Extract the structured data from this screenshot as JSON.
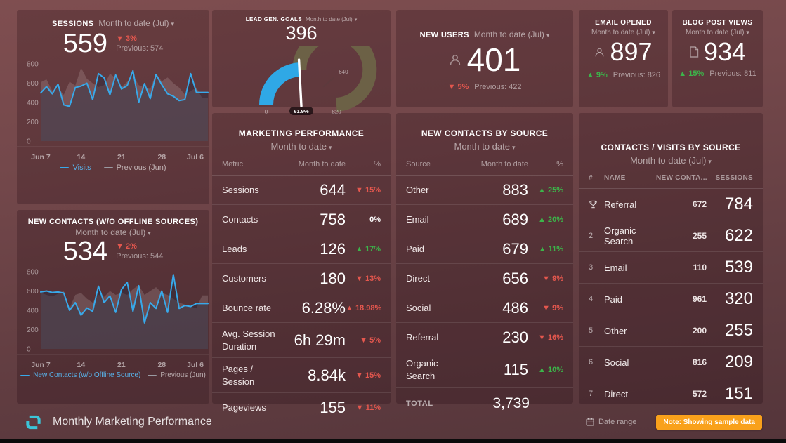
{
  "panels": {
    "sessions": {
      "title": "SESSIONS",
      "range": "Month to date (Jul)",
      "value": "559",
      "delta": "3%",
      "delta_dir": "down",
      "previous": "Previous: 574"
    },
    "lead_gen_goals": {
      "title": "LEAD GEN. GOALS",
      "range": "Month to date (Jul)",
      "value": "396",
      "gauge_min": "0",
      "gauge_goal": "640",
      "gauge_max": "820",
      "percent_label": "61.9%"
    },
    "new_users": {
      "title": "NEW USERS",
      "range": "Month to date (Jul)",
      "value": "401",
      "delta": "5%",
      "delta_dir": "down",
      "previous": "Previous: 422"
    },
    "email_opened": {
      "title": "EMAIL OPENED",
      "range": "Month to date (Jul)",
      "value": "897",
      "delta": "9%",
      "delta_dir": "up",
      "previous": "Previous: 826"
    },
    "blog_post_views": {
      "title": "BLOG POST VIEWS",
      "range": "Month to date (Jul)",
      "value": "934",
      "delta": "15%",
      "delta_dir": "up",
      "previous": "Previous: 811"
    },
    "new_contacts": {
      "title": "NEW CONTACTS (W/O OFFLINE SOURCES)",
      "range": "Month to date (Jul)",
      "value": "534",
      "delta": "2%",
      "delta_dir": "down",
      "previous": "Previous: 544"
    },
    "marketing_performance": {
      "title": "MARKETING PERFORMANCE",
      "range": "Month to date",
      "columns": [
        "Metric",
        "Month to date",
        "%"
      ],
      "rows": [
        {
          "label": "Sessions",
          "value": "644",
          "delta": "15%",
          "arrow": "down",
          "tone": "bad"
        },
        {
          "label": "Contacts",
          "value": "758",
          "delta": "0%",
          "arrow": "none",
          "tone": "neutral"
        },
        {
          "label": "Leads",
          "value": "126",
          "delta": "17%",
          "arrow": "up",
          "tone": "good"
        },
        {
          "label": "Customers",
          "value": "180",
          "delta": "13%",
          "arrow": "down",
          "tone": "bad"
        },
        {
          "label": "Bounce rate",
          "value": "6.28%",
          "delta": "18.98%",
          "arrow": "up",
          "tone": "bad"
        },
        {
          "label": "Avg. Session Duration",
          "value": "6h 29m",
          "delta": "5%",
          "arrow": "down",
          "tone": "bad"
        },
        {
          "label": "Pages / Session",
          "value": "8.84k",
          "delta": "15%",
          "arrow": "down",
          "tone": "bad"
        },
        {
          "label": "Pageviews",
          "value": "155",
          "delta": "11%",
          "arrow": "down",
          "tone": "bad"
        }
      ]
    },
    "new_contacts_by_source": {
      "title": "NEW CONTACTS BY SOURCE",
      "range": "Month to date",
      "columns": [
        "Source",
        "Month to date",
        "%"
      ],
      "rows": [
        {
          "label": "Other",
          "value": "883",
          "delta": "25%",
          "arrow": "up",
          "tone": "good"
        },
        {
          "label": "Email",
          "value": "689",
          "delta": "20%",
          "arrow": "up",
          "tone": "good"
        },
        {
          "label": "Paid",
          "value": "679",
          "delta": "11%",
          "arrow": "up",
          "tone": "good"
        },
        {
          "label": "Direct",
          "value": "656",
          "delta": "9%",
          "arrow": "down",
          "tone": "bad"
        },
        {
          "label": "Social",
          "value": "486",
          "delta": "9%",
          "arrow": "down",
          "tone": "bad"
        },
        {
          "label": "Referral",
          "value": "230",
          "delta": "16%",
          "arrow": "down",
          "tone": "bad"
        },
        {
          "label": "Organic Search",
          "value": "115",
          "delta": "10%",
          "arrow": "up",
          "tone": "good"
        }
      ],
      "total_label": "TOTAL",
      "total_value": "3,739"
    },
    "contacts_visits_by_source": {
      "title": "CONTACTS / VISITS BY SOURCE",
      "range": "Month to date (Jul)",
      "columns": [
        "#",
        "NAME",
        "NEW CONTA...",
        "SESSIONS"
      ],
      "rows": [
        {
          "rank": "1",
          "rank_icon": "trophy",
          "name": "Referral",
          "new_contacts": "672",
          "sessions": "784"
        },
        {
          "rank": "2",
          "name": "Organic Search",
          "new_contacts": "255",
          "sessions": "622"
        },
        {
          "rank": "3",
          "name": "Email",
          "new_contacts": "110",
          "sessions": "539"
        },
        {
          "rank": "4",
          "name": "Paid",
          "new_contacts": "961",
          "sessions": "320"
        },
        {
          "rank": "5",
          "name": "Other",
          "new_contacts": "200",
          "sessions": "255"
        },
        {
          "rank": "6",
          "name": "Social",
          "new_contacts": "816",
          "sessions": "209"
        },
        {
          "rank": "7",
          "name": "Direct",
          "new_contacts": "572",
          "sessions": "151"
        }
      ]
    }
  },
  "footer": {
    "title": "Monthly Marketing Performance",
    "date_range": "Date range",
    "note": "Note: Showing sample data"
  },
  "theme": {
    "accent_blue": "#38a9ea",
    "red": "#e4574e",
    "green": "#3cb54a",
    "gauge_blue": "#2fa8e6",
    "gauge_olive": "#6c6146",
    "note_orange": "#f9a11b",
    "logo_teal": "#3bc5d8"
  },
  "chart_data": [
    {
      "id": "sessions",
      "type": "line",
      "title": "SESSIONS",
      "ylim": [
        0,
        800
      ],
      "y_ticks": [
        0,
        200,
        400,
        600,
        800
      ],
      "x_ticks": [
        "Jun 7",
        "14",
        "21",
        "28",
        "Jul 6"
      ],
      "x_tick_indices": [
        0,
        7,
        14,
        21,
        29
      ],
      "series": [
        {
          "name": "Visits",
          "color": "#38a9ea",
          "label_color": "#58b3eb",
          "values": [
            500,
            565,
            490,
            590,
            375,
            360,
            555,
            570,
            600,
            430,
            700,
            655,
            480,
            685,
            540,
            575,
            730,
            400,
            595,
            440,
            690,
            585,
            490,
            465,
            420,
            430,
            700,
            505,
            505,
            505
          ]
        },
        {
          "name": "Previous (Jun)",
          "color": "#9a9aa2",
          "label_color": "rgba(255,255,255,0.6)",
          "values": [
            610,
            640,
            520,
            555,
            480,
            615,
            575,
            760,
            645,
            600,
            560,
            580,
            700,
            650,
            560,
            615,
            680,
            580,
            555,
            540,
            700,
            620,
            660,
            600,
            555,
            480,
            520,
            555,
            445,
            445
          ]
        }
      ]
    },
    {
      "id": "new_contacts",
      "type": "line",
      "title": "NEW CONTACTS (W/O OFFLINE SOURCES)",
      "ylim": [
        0,
        800
      ],
      "y_ticks": [
        0,
        200,
        400,
        600,
        800
      ],
      "x_ticks": [
        "Jun 7",
        "14",
        "21",
        "28",
        "Jul 6"
      ],
      "x_tick_indices": [
        0,
        7,
        14,
        21,
        29
      ],
      "series": [
        {
          "name": "New Contacts (w/o Offline Source)",
          "color": "#38a9ea",
          "label_color": "#58b3eb",
          "values": [
            590,
            600,
            585,
            590,
            580,
            400,
            480,
            350,
            425,
            390,
            650,
            480,
            550,
            380,
            615,
            690,
            390,
            655,
            270,
            480,
            420,
            600,
            380,
            770,
            420,
            450,
            440,
            470,
            470,
            470
          ]
        },
        {
          "name": "Previous (Jun)",
          "color": "#9a9aa2",
          "label_color": "rgba(255,255,255,0.6)",
          "values": [
            580,
            560,
            545,
            570,
            600,
            420,
            560,
            580,
            520,
            480,
            560,
            540,
            600,
            560,
            580,
            560,
            620,
            660,
            560,
            600,
            640,
            580,
            560,
            520,
            480,
            460,
            440,
            420,
            555,
            555
          ]
        }
      ]
    },
    {
      "id": "lead_gen",
      "type": "gauge",
      "title": "LEAD GEN. GOALS",
      "value": 396,
      "min": 0,
      "max": 820,
      "goal": 640,
      "percent_of_goal": "61.9%"
    }
  ]
}
